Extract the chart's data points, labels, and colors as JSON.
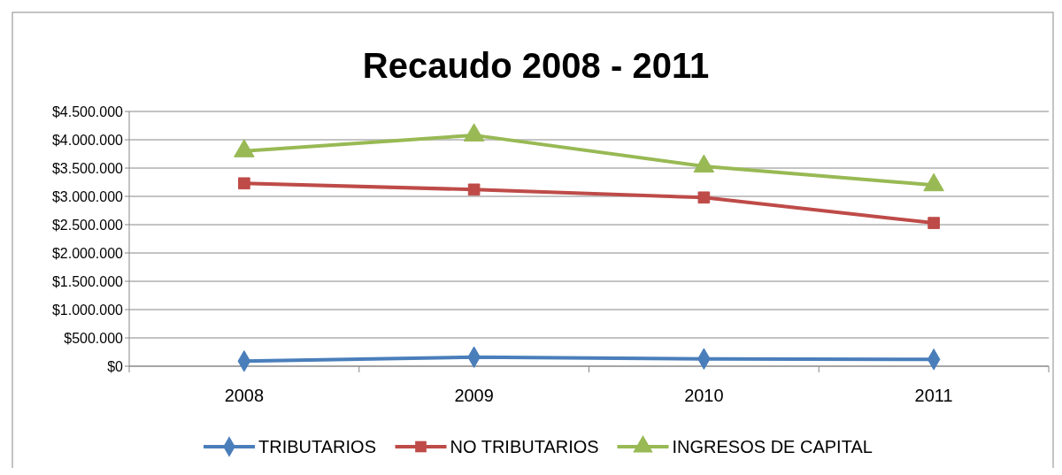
{
  "chart_data": {
    "type": "line",
    "title": "Recaudo 2008 - 2011",
    "categories": [
      "2008",
      "2009",
      "2010",
      "2011"
    ],
    "series": [
      {
        "name": "TRIBUTARIOS",
        "color": "#4a7ebb",
        "marker": "diamond",
        "values": [
          90000,
          160000,
          130000,
          120000
        ]
      },
      {
        "name": "NO TRIBUTARIOS",
        "color": "#be4b48",
        "marker": "square",
        "values": [
          3230000,
          3120000,
          2980000,
          2530000
        ]
      },
      {
        "name": "INGRESOS DE CAPITAL",
        "color": "#98b954",
        "marker": "triangle",
        "values": [
          3800000,
          4080000,
          3530000,
          3200000
        ]
      }
    ],
    "ylim": [
      0,
      4500000
    ],
    "yticks": [
      {
        "value": 0,
        "label": "$0"
      },
      {
        "value": 500000,
        "label": "$500.000"
      },
      {
        "value": 1000000,
        "label": "$1.000.000"
      },
      {
        "value": 1500000,
        "label": "$1.500.000"
      },
      {
        "value": 2000000,
        "label": "$2.000.000"
      },
      {
        "value": 2500000,
        "label": "$2.500.000"
      },
      {
        "value": 3000000,
        "label": "$3.000.000"
      },
      {
        "value": 3500000,
        "label": "$3.500.000"
      },
      {
        "value": 4000000,
        "label": "$4.000.000"
      },
      {
        "value": 4500000,
        "label": "$4.500.000"
      }
    ],
    "grid": "y",
    "legend": "bottom",
    "line_style": "solid"
  }
}
